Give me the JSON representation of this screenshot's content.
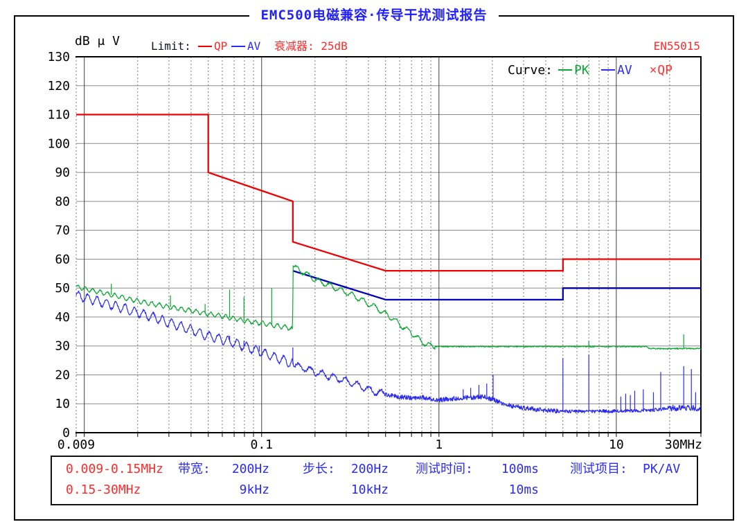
{
  "title": "EMC500电磁兼容·传导干扰测试报告",
  "header": {
    "unit_label": "dB μ V",
    "limit_label": "Limit:",
    "limit_qp": "QP",
    "limit_av": "AV",
    "attenuator": "衰减器: 25dB",
    "standard": "EN55015"
  },
  "legend": {
    "label": "Curve:",
    "pk": "PK",
    "av": "AV",
    "qp": "QP",
    "qp_marker": "✕"
  },
  "info": {
    "ranges": [
      "0.009-0.15MHz",
      "0.15-30MHz"
    ],
    "bandwidth_label": "带宽:",
    "bandwidth_values": [
      "200Hz",
      "9kHz"
    ],
    "step_label": "步长:",
    "step_values": [
      "200Hz",
      "10kHz"
    ],
    "time_label": "测试时间:",
    "time_values": [
      "100ms",
      "10ms"
    ],
    "item_label": "测试项目:",
    "item_value": "PK/AV"
  },
  "colors": {
    "title_blue": "#2121ff",
    "red_text": "#ff2a2a",
    "blue_text": "#2a2aff",
    "qp_limit": "#f00000",
    "av_limit": "#0000b8",
    "pk_curve": "#0aa832",
    "av_curve": "#2a2af0",
    "grid_major": "#404040",
    "grid_minor": "#787878",
    "grid_horizontal": "#8a8a8a"
  },
  "chart_data": {
    "type": "line",
    "title": "EMC500电磁兼容·传导干扰测试报告",
    "standard": "EN55015",
    "xlabel": "MHz",
    "ylabel": "dBμV",
    "x_axis": {
      "scale": "log",
      "min": 0.009,
      "max": 30,
      "ticks": [
        {
          "f": 0.009,
          "label": "0.009"
        },
        {
          "f": 0.1,
          "label": "0.1"
        },
        {
          "f": 1,
          "label": "1"
        },
        {
          "f": 10,
          "label": "10"
        },
        {
          "f": 30,
          "label": "30MHz"
        }
      ]
    },
    "y_axis": {
      "min": 0,
      "max": 130,
      "step": 10
    },
    "limit_lines": [
      {
        "name": "QP",
        "color": "#f00000",
        "points": [
          [
            0.009,
            110
          ],
          [
            0.05,
            110
          ],
          [
            0.05,
            90
          ],
          [
            0.15,
            80
          ],
          [
            0.15,
            66
          ],
          [
            0.5,
            56
          ],
          [
            5,
            56
          ],
          [
            5,
            60
          ],
          [
            30,
            60
          ]
        ]
      },
      {
        "name": "AV",
        "color": "#0000b8",
        "points": [
          [
            0.15,
            56
          ],
          [
            0.5,
            46
          ],
          [
            5,
            46
          ],
          [
            5,
            50
          ],
          [
            30,
            50
          ]
        ]
      }
    ],
    "series": [
      {
        "name": "PK",
        "color": "#0aa832",
        "anchors": [
          [
            0.009,
            50.5
          ],
          [
            0.011,
            49.2
          ],
          [
            0.014,
            47.8
          ],
          [
            0.018,
            46.2
          ],
          [
            0.023,
            44.8
          ],
          [
            0.03,
            43.5
          ],
          [
            0.04,
            42.2
          ],
          [
            0.05,
            41.0
          ],
          [
            0.06,
            40.3
          ],
          [
            0.08,
            38.7
          ],
          [
            0.1,
            37.8
          ],
          [
            0.12,
            37.0
          ],
          [
            0.1495,
            36.0
          ],
          [
            0.1505,
            57.5
          ],
          [
            0.2,
            53.0
          ],
          [
            0.25,
            50.5
          ],
          [
            0.3,
            48.5
          ],
          [
            0.35,
            46.5
          ],
          [
            0.4,
            44.6
          ],
          [
            0.45,
            43.0
          ],
          [
            0.5,
            41.0
          ],
          [
            0.55,
            39.5
          ],
          [
            0.6,
            37.5
          ],
          [
            0.7,
            34.5
          ],
          [
            0.8,
            31.5
          ],
          [
            0.9,
            30.0
          ],
          [
            1.0,
            29.8
          ],
          [
            15.0,
            29.8
          ],
          [
            15.2,
            29.1
          ],
          [
            30,
            29.1
          ]
        ],
        "ripples": [
          {
            "f0": 0.009,
            "f1": 0.148,
            "amp": 0.7,
            "cycles": 24
          },
          {
            "f0": 0.152,
            "f1": 0.95,
            "amp": 0.9,
            "cycles": 16
          }
        ],
        "noise": [
          [
            0.009,
            0.15,
            0.25
          ],
          [
            0.15,
            1,
            0.3
          ],
          [
            1,
            30,
            0.22
          ]
        ],
        "spikes": [
          [
            0.0142,
            51.5
          ],
          [
            0.0306,
            47.5
          ],
          [
            0.048,
            44.5
          ],
          [
            0.066,
            49.5
          ],
          [
            0.0795,
            47.0
          ],
          [
            0.114,
            50.0
          ],
          [
            7.0,
            31.8
          ],
          [
            24.0,
            34.0
          ]
        ]
      },
      {
        "name": "AV",
        "color": "#2a2af0",
        "anchors": [
          [
            0.009,
            47.5
          ],
          [
            0.012,
            45.5
          ],
          [
            0.016,
            43.3
          ],
          [
            0.02,
            41.5
          ],
          [
            0.025,
            39.8
          ],
          [
            0.03,
            38.0
          ],
          [
            0.04,
            35.6
          ],
          [
            0.05,
            33.5
          ],
          [
            0.06,
            32.2
          ],
          [
            0.07,
            31.0
          ],
          [
            0.08,
            29.8
          ],
          [
            0.09,
            28.8
          ],
          [
            0.1,
            27.8
          ],
          [
            0.12,
            26.0
          ],
          [
            0.1495,
            24.0
          ],
          [
            0.1505,
            23.3
          ],
          [
            0.18,
            22.0
          ],
          [
            0.2,
            21.0
          ],
          [
            0.25,
            19.3
          ],
          [
            0.3,
            17.8
          ],
          [
            0.35,
            16.3
          ],
          [
            0.4,
            15.0
          ],
          [
            0.45,
            14.0
          ],
          [
            0.5,
            13.3
          ],
          [
            0.6,
            12.4
          ],
          [
            0.7,
            12.0
          ],
          [
            0.8,
            12.4
          ],
          [
            0.9,
            11.7
          ],
          [
            1.0,
            11.3
          ],
          [
            1.2,
            11.8
          ],
          [
            1.5,
            12.2
          ],
          [
            1.8,
            12.4
          ],
          [
            2.0,
            11.5
          ],
          [
            2.3,
            10.0
          ],
          [
            2.6,
            9.2
          ],
          [
            3.0,
            8.6
          ],
          [
            3.5,
            8.1
          ],
          [
            4.0,
            7.8
          ],
          [
            5.0,
            7.4
          ],
          [
            8.0,
            7.4
          ],
          [
            12.0,
            7.6
          ],
          [
            16.0,
            7.8
          ],
          [
            18.0,
            8.1
          ],
          [
            19.5,
            8.6
          ],
          [
            25.0,
            8.6
          ],
          [
            30.0,
            8.4
          ]
        ],
        "ripples": [
          {
            "f0": 0.009,
            "f1": 0.15,
            "amp": 1.5,
            "cycles": 19
          },
          {
            "f0": 0.155,
            "f1": 0.5,
            "amp": 1.1,
            "cycles": 15
          }
        ],
        "noise": [
          [
            0.009,
            0.15,
            0.4
          ],
          [
            0.15,
            0.5,
            0.5
          ],
          [
            0.5,
            5,
            0.8
          ],
          [
            5,
            19.5,
            0.6
          ],
          [
            19.5,
            30,
            1.1
          ]
        ],
        "spikes": [
          [
            0.066,
            33.5
          ],
          [
            0.0795,
            31.8
          ],
          [
            0.097,
            30.0
          ],
          [
            0.15,
            29.5
          ],
          [
            1.37,
            15.0
          ],
          [
            1.51,
            15.5
          ],
          [
            1.68,
            16.5
          ],
          [
            1.86,
            17.0
          ],
          [
            2.02,
            20.0
          ],
          [
            5.0,
            25.8
          ],
          [
            7.0,
            27.0
          ],
          [
            10.6,
            12.5
          ],
          [
            11.3,
            13.5
          ],
          [
            12.0,
            13.0
          ],
          [
            12.7,
            14.5
          ],
          [
            14.2,
            15.0
          ],
          [
            16.2,
            14.0
          ],
          [
            17.8,
            21.0
          ],
          [
            24.0,
            23.0
          ],
          [
            26.5,
            22.0
          ],
          [
            28.0,
            14.0
          ]
        ]
      }
    ]
  }
}
